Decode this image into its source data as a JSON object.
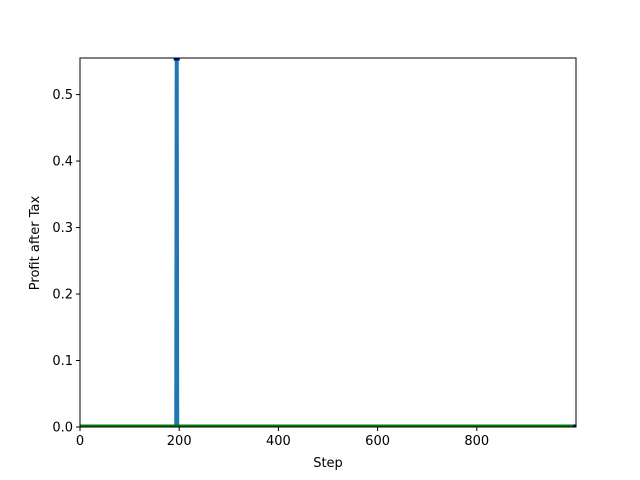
{
  "chart_data": {
    "type": "line",
    "title": "",
    "xlabel": "Step",
    "ylabel": "Profit after Tax",
    "xlim": [
      0,
      1000
    ],
    "ylim": [
      0,
      0.555
    ],
    "xticks": [
      0,
      200,
      400,
      600,
      800
    ],
    "yticks": [
      0.0,
      0.1,
      0.2,
      0.3,
      0.4,
      0.5
    ],
    "xtick_labels": [
      "0",
      "200",
      "400",
      "600",
      "800"
    ],
    "ytick_labels": [
      "0.0",
      "0.1",
      "0.2",
      "0.3",
      "0.4",
      "0.5"
    ],
    "grid": false,
    "legend": "none",
    "series": [
      {
        "color": "#1f77b4",
        "x": [
          0,
          194,
          195,
          196,
          1000
        ],
        "y": [
          0,
          0,
          0.555,
          0,
          0
        ]
      },
      {
        "color": "#008000",
        "x": [
          0,
          1000
        ],
        "y": [
          0,
          0
        ]
      }
    ],
    "markers": [
      {
        "x": 195,
        "y": 0.555,
        "color": "#00008b"
      },
      {
        "x": 1000,
        "y": 0,
        "color": "#00008b"
      }
    ]
  }
}
